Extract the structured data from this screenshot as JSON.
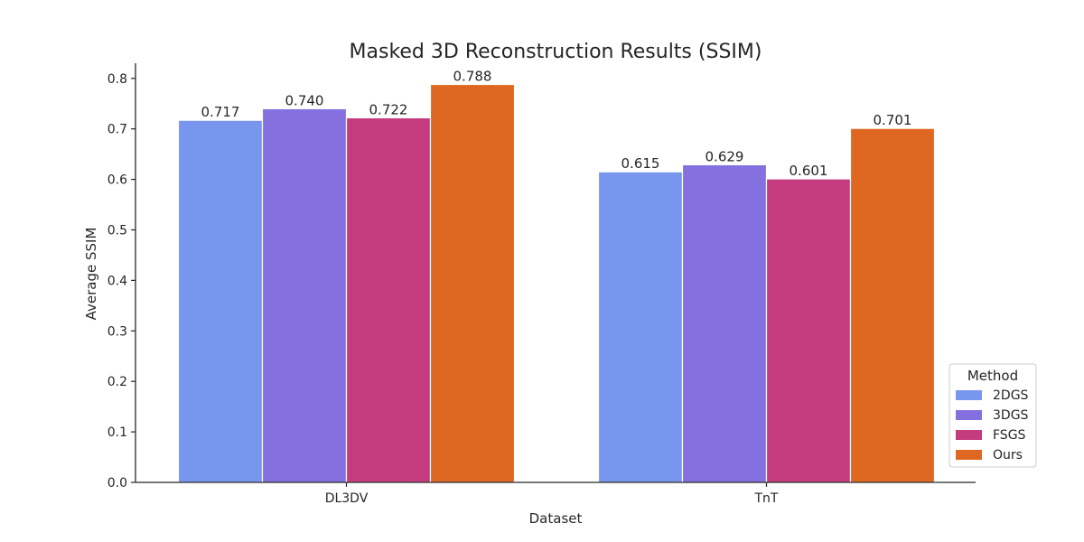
{
  "chart_data": {
    "type": "bar",
    "title": "Masked 3D Reconstruction Results (SSIM)",
    "xlabel": "Dataset",
    "ylabel": "Average SSIM",
    "categories": [
      "DL3DV",
      "TnT"
    ],
    "ylim": [
      0,
      0.83
    ],
    "yticks": [
      0.0,
      0.1,
      0.2,
      0.3,
      0.4,
      0.5,
      0.6,
      0.7,
      0.8
    ],
    "ytick_labels": [
      "0.0",
      "0.1",
      "0.2",
      "0.3",
      "0.4",
      "0.5",
      "0.6",
      "0.7",
      "0.8"
    ],
    "grid": false,
    "legend": {
      "title": "Method",
      "placement": "lower-right"
    },
    "series": [
      {
        "name": "2DGS",
        "color": "#7896ee",
        "values": [
          0.717,
          0.615
        ],
        "labels": [
          "0.717",
          "0.615"
        ]
      },
      {
        "name": "3DGS",
        "color": "#8570e0",
        "values": [
          0.74,
          0.629
        ],
        "labels": [
          "0.740",
          "0.629"
        ]
      },
      {
        "name": "FSGS",
        "color": "#c43c7e",
        "values": [
          0.722,
          0.601
        ],
        "labels": [
          "0.722",
          "0.601"
        ]
      },
      {
        "name": "Ours",
        "color": "#de6822",
        "values": [
          0.788,
          0.701
        ],
        "labels": [
          "0.788",
          "0.701"
        ]
      }
    ]
  }
}
